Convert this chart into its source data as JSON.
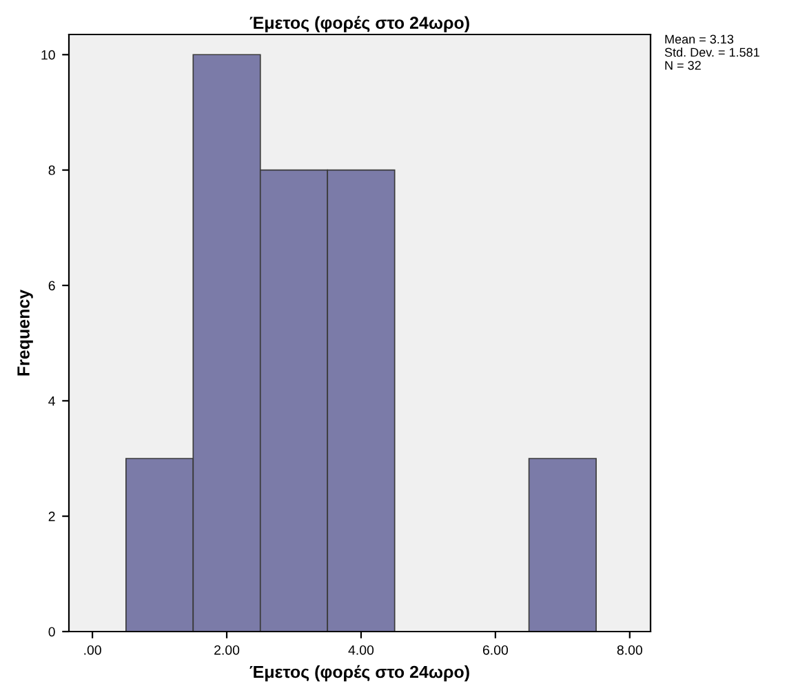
{
  "chart_data": {
    "type": "histogram",
    "title": "Έμετος (φορές στο 24ωρο)",
    "xlabel": "Έμετος (φορές στο 24ωρο)",
    "ylabel": "Frequency",
    "bins": [
      0.5,
      1.5,
      2.5,
      3.5,
      4.5,
      5.5,
      6.5,
      7.5
    ],
    "values": [
      3,
      10,
      8,
      8,
      0,
      0,
      3
    ],
    "color": "#7b7ba8",
    "xlim": [
      -0.35,
      8.31
    ],
    "ylim": [
      0,
      10.35
    ],
    "xticks": [
      {
        "value": 0,
        "label": ".00"
      },
      {
        "value": 2,
        "label": "2.00"
      },
      {
        "value": 4,
        "label": "4.00"
      },
      {
        "value": 6,
        "label": "6.00"
      },
      {
        "value": 8,
        "label": "8.00"
      }
    ],
    "yticks": [
      0,
      2,
      4,
      6,
      8,
      10
    ],
    "grid": false,
    "legend": false,
    "annotations": [
      "Mean = 3.13",
      "Std. Dev. = 1.581",
      "N = 32"
    ]
  }
}
